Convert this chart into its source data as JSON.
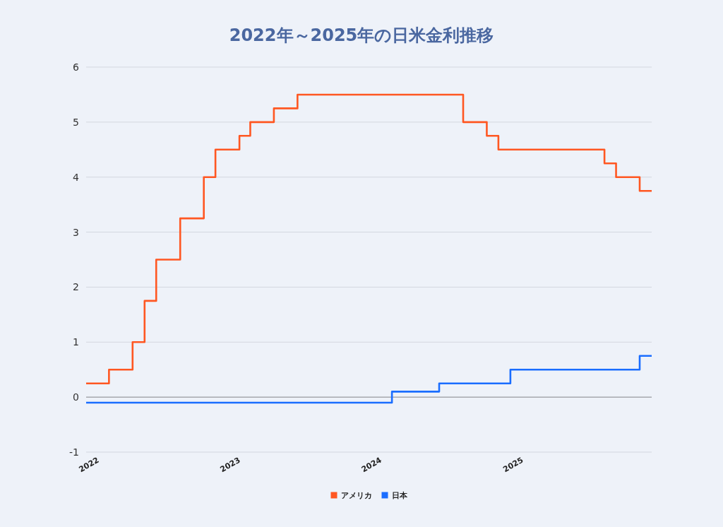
{
  "chart_data": {
    "type": "step",
    "title": "2022年～2025年の日米金利推移",
    "series": [
      {
        "name": "アメリカ",
        "color": "#ff5722",
        "x": [
          "2022-01",
          "2022-03",
          "2022-05",
          "2022-06",
          "2022-07",
          "2022-09",
          "2022-11",
          "2022-12",
          "2023-02",
          "2023-03",
          "2023-05",
          "2023-07",
          "2024-09",
          "2024-11",
          "2024-12",
          "2025-09",
          "2025-10",
          "2025-12",
          "2026-01"
        ],
        "values": [
          0.25,
          0.5,
          1.0,
          1.75,
          2.5,
          3.25,
          4.0,
          4.5,
          4.75,
          5.0,
          5.25,
          5.5,
          5.0,
          4.75,
          4.5,
          4.25,
          4.0,
          3.75,
          3.75
        ]
      },
      {
        "name": "日本",
        "color": "#1a6dff",
        "x": [
          "2022-01",
          "2024-03",
          "2024-07",
          "2025-01",
          "2025-12",
          "2026-01"
        ],
        "values": [
          -0.1,
          0.1,
          0.25,
          0.5,
          0.75,
          0.75
        ]
      }
    ],
    "xlim": [
      "2022-01",
      "2026-01"
    ],
    "xticks": [
      "2022",
      "2023",
      "2024",
      "2025"
    ],
    "ylim": [
      -1,
      6
    ],
    "yticks": [
      -1,
      0,
      1,
      2,
      3,
      4,
      5,
      6
    ],
    "grid": "y",
    "legend": "bottom"
  }
}
